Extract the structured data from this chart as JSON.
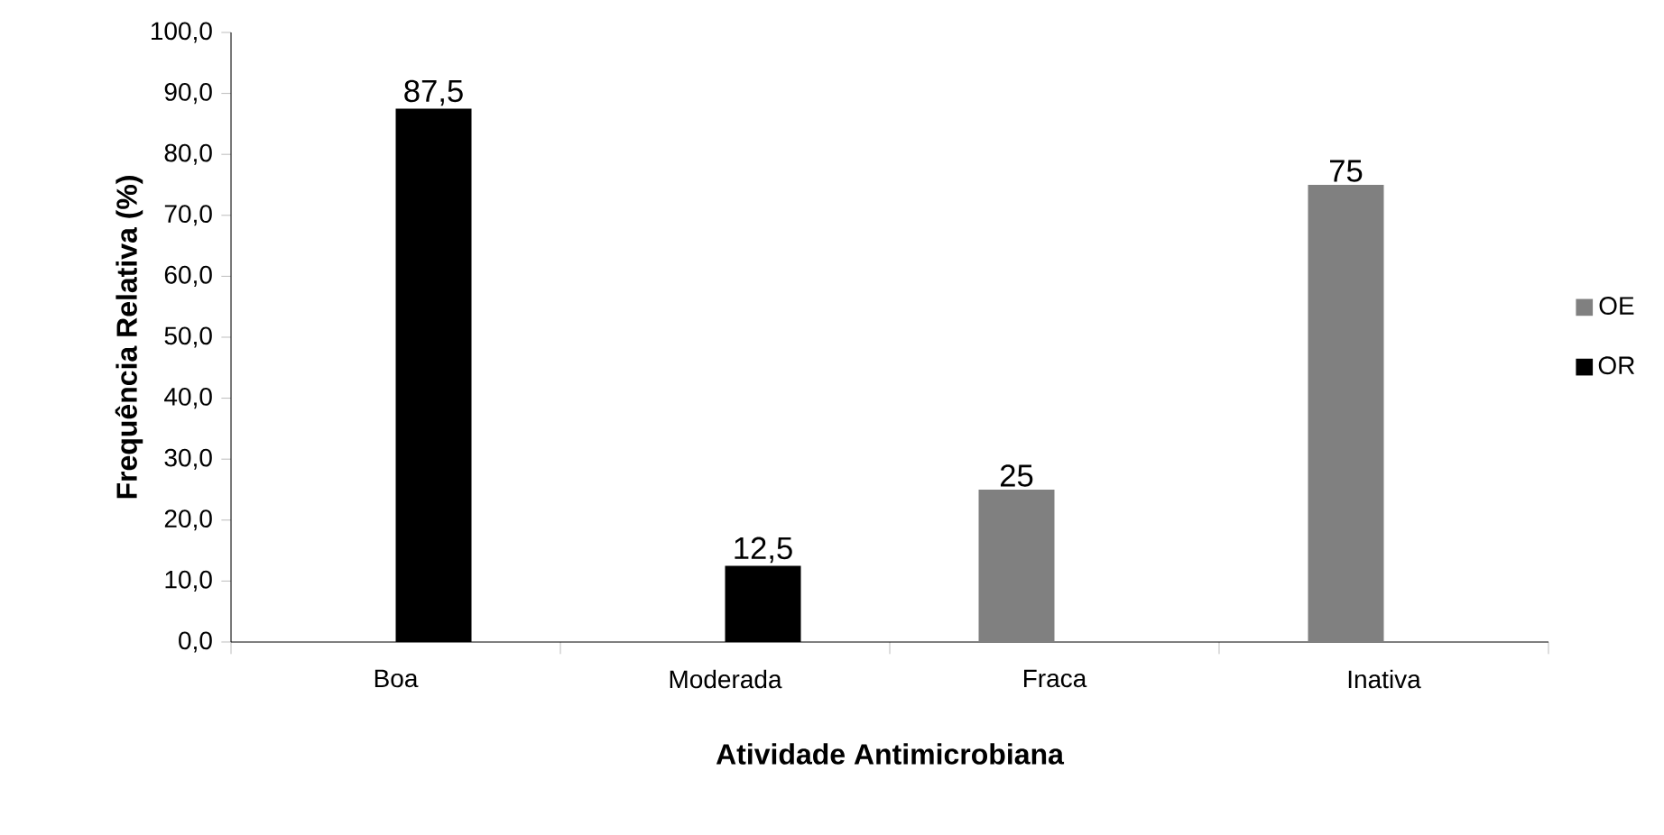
{
  "chart_data": {
    "type": "bar",
    "xlabel": "Atividade Antimicrobiana",
    "ylabel": "Frequência Relativa (%)",
    "categories": [
      "Boa",
      "Moderada",
      "Fraca",
      "Inativa"
    ],
    "series": [
      {
        "name": "OE",
        "color": "#808080",
        "values": [
          null,
          null,
          25,
          75
        ],
        "value_labels": [
          null,
          null,
          "25",
          "75"
        ]
      },
      {
        "name": "OR",
        "color": "#000000",
        "values": [
          87.5,
          12.5,
          null,
          null
        ],
        "value_labels": [
          "87,5",
          "12,5",
          null,
          null
        ]
      }
    ],
    "ylim": [
      0,
      100
    ],
    "yticks": [
      {
        "value": 0,
        "label": "0,0"
      },
      {
        "value": 10,
        "label": "10,0"
      },
      {
        "value": 20,
        "label": "20,0"
      },
      {
        "value": 30,
        "label": "30,0"
      },
      {
        "value": 40,
        "label": "40,0"
      },
      {
        "value": 50,
        "label": "50,0"
      },
      {
        "value": 60,
        "label": "60,0"
      },
      {
        "value": 70,
        "label": "70,0"
      },
      {
        "value": 80,
        "label": "80,0"
      },
      {
        "value": 90,
        "label": "90,0"
      },
      {
        "value": 100,
        "label": "100,0"
      }
    ],
    "grid": false,
    "legend": "right"
  }
}
